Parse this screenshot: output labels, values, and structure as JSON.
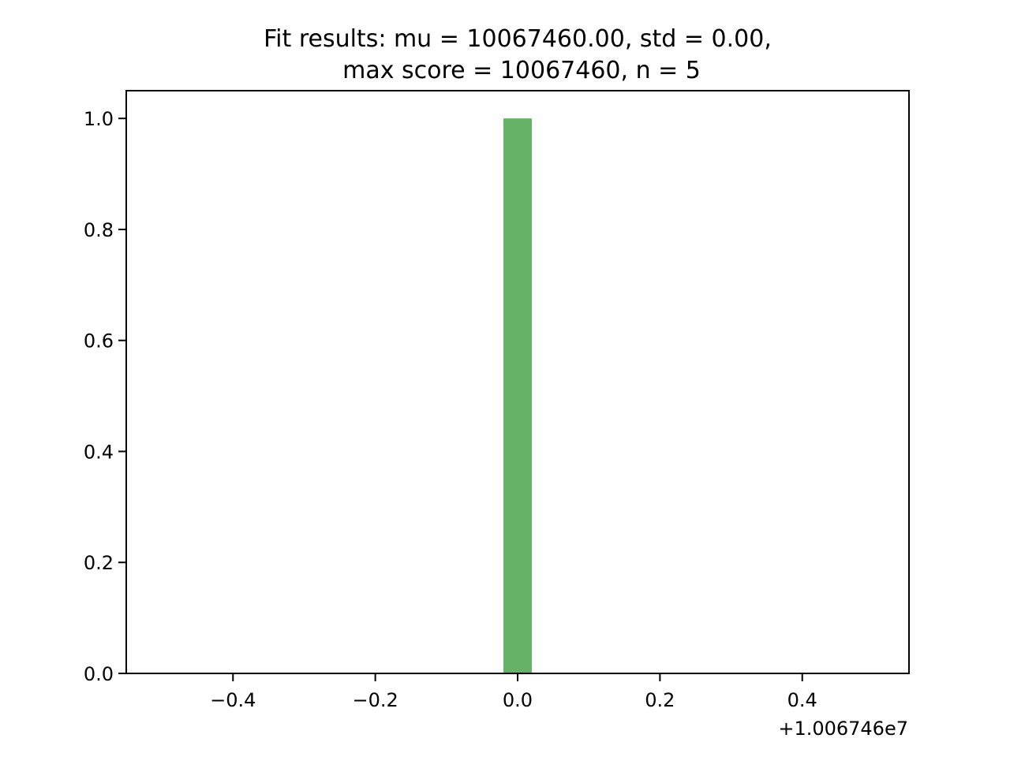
{
  "chart_data": {
    "type": "bar",
    "title_lines": [
      "Fit results: mu = 10067460.00,  std = 0.00,",
      "max score = 10067460, n = 5"
    ],
    "x_offset_label": "+1.006746e7",
    "xlim": [
      -0.55,
      0.55
    ],
    "ylim": [
      0,
      1.05
    ],
    "x_ticks": [
      {
        "value": -0.4,
        "label": "−0.4"
      },
      {
        "value": -0.2,
        "label": "−0.2"
      },
      {
        "value": 0.0,
        "label": "0.0"
      },
      {
        "value": 0.2,
        "label": "0.2"
      },
      {
        "value": 0.4,
        "label": "0.4"
      }
    ],
    "y_ticks": [
      {
        "value": 0.0,
        "label": "0.0"
      },
      {
        "value": 0.2,
        "label": "0.2"
      },
      {
        "value": 0.4,
        "label": "0.4"
      },
      {
        "value": 0.6,
        "label": "0.6"
      },
      {
        "value": 0.8,
        "label": "0.8"
      },
      {
        "value": 1.0,
        "label": "1.0"
      }
    ],
    "bars": [
      {
        "x_start": -0.02,
        "x_end": 0.02,
        "value": 1.0
      }
    ],
    "bar_color": "#66b266",
    "grid": false
  }
}
